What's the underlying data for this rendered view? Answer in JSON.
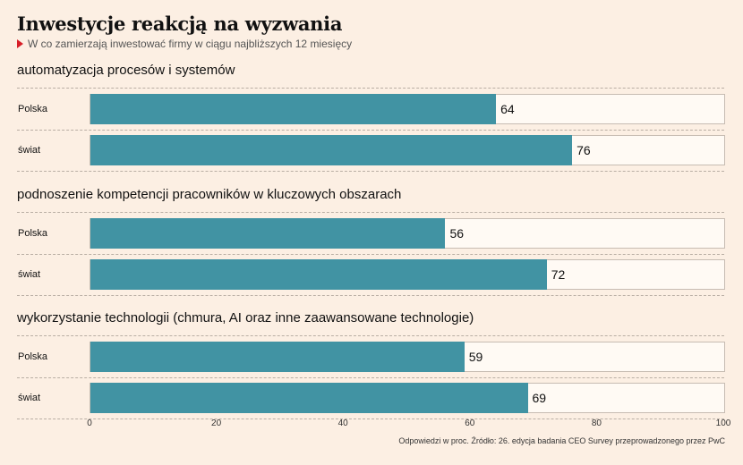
{
  "title": "Inwestycje reakcją na wyzwania",
  "subtitle": "W co zamierzają inwestować firmy w ciągu najbliższych 12 miesięcy",
  "source": "Odpowiedzi w proc. Źródło: 26. edycja badania CEO Survey przeprowadzonego przez PwC",
  "colors": {
    "bar": "#4193a3",
    "background": "#fcefe3",
    "marker": "#d71e28"
  },
  "chart_data": {
    "type": "bar",
    "orientation": "horizontal",
    "xlim": [
      0,
      100
    ],
    "ticks": [
      "0",
      "20",
      "40",
      "60",
      "80",
      "100"
    ],
    "groups": [
      {
        "title": "automatyzacja procesów i systemów",
        "rows": [
          {
            "label": "Polska",
            "value": 64
          },
          {
            "label": "świat",
            "value": 76
          }
        ]
      },
      {
        "title": "podnoszenie kompetencji pracowników w kluczowych obszarach",
        "rows": [
          {
            "label": "Polska",
            "value": 56
          },
          {
            "label": "świat",
            "value": 72
          }
        ]
      },
      {
        "title": "wykorzystanie technologii (chmura, AI oraz inne zaawansowane technologie)",
        "rows": [
          {
            "label": "Polska",
            "value": 59
          },
          {
            "label": "świat",
            "value": 69
          }
        ]
      }
    ]
  }
}
